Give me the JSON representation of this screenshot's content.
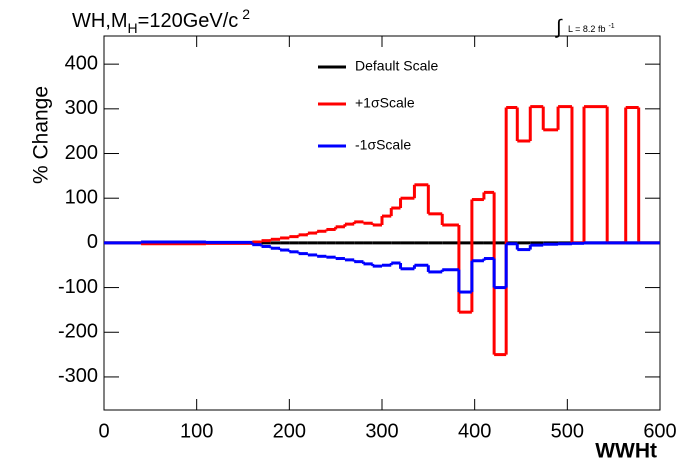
{
  "chart_data": {
    "type": "histogram",
    "title": {
      "main": "WH,M",
      "sub": "H",
      "rest": "=120GeV/c",
      "sup": "2"
    },
    "annotation": {
      "integral": "∫",
      "text": "L = 8.2 fb",
      "sup": "-1"
    },
    "xlabel": "WWHt",
    "ylabel": "% Change",
    "bins": [
      0,
      40,
      110,
      160,
      170,
      180,
      190,
      200,
      210,
      220,
      230,
      240,
      250,
      260,
      270,
      280,
      290,
      300,
      310,
      320,
      335,
      350,
      365,
      383,
      397,
      410,
      421,
      434,
      446,
      460,
      474,
      490,
      505,
      518,
      543,
      563,
      577,
      600
    ],
    "series": [
      {
        "name": "Default Scale",
        "color": "#000000",
        "values": [
          0,
          0,
          0,
          0,
          0,
          0,
          0,
          0,
          0,
          0,
          0,
          0,
          0,
          0,
          0,
          0,
          0,
          0,
          0,
          0,
          0,
          0,
          0,
          0,
          0,
          0,
          0,
          0,
          0,
          0,
          0,
          0,
          0,
          0,
          0,
          0,
          0
        ]
      },
      {
        "name": "+1σScale",
        "color": "#ff0000",
        "values": [
          0,
          -2,
          -1,
          2,
          5,
          8,
          11,
          14,
          18,
          22,
          26,
          30,
          36,
          42,
          47,
          44,
          40,
          60,
          78,
          100,
          130,
          65,
          40,
          -155,
          97,
          113,
          -250,
          303,
          228,
          305,
          253,
          305,
          0,
          305,
          0,
          303,
          0
        ]
      },
      {
        "name": "-1σScale",
        "color": "#0000ff",
        "values": [
          0,
          2,
          1,
          -4,
          -8,
          -12,
          -16,
          -20,
          -24,
          -27,
          -30,
          -32,
          -35,
          -38,
          -42,
          -47,
          -52,
          -50,
          -45,
          -58,
          -50,
          -65,
          -60,
          -110,
          -40,
          -35,
          -100,
          -2,
          -15,
          -5,
          -3,
          -2,
          -1,
          0,
          0,
          0,
          0
        ]
      }
    ],
    "xlim": [
      0,
      600
    ],
    "xticks": [
      0,
      100,
      200,
      300,
      400,
      500,
      600
    ],
    "ylim": [
      -374,
      463
    ],
    "yticks": [
      -300,
      -200,
      -100,
      0,
      100,
      200,
      300,
      400
    ],
    "grid": false,
    "legend": "top-center"
  }
}
